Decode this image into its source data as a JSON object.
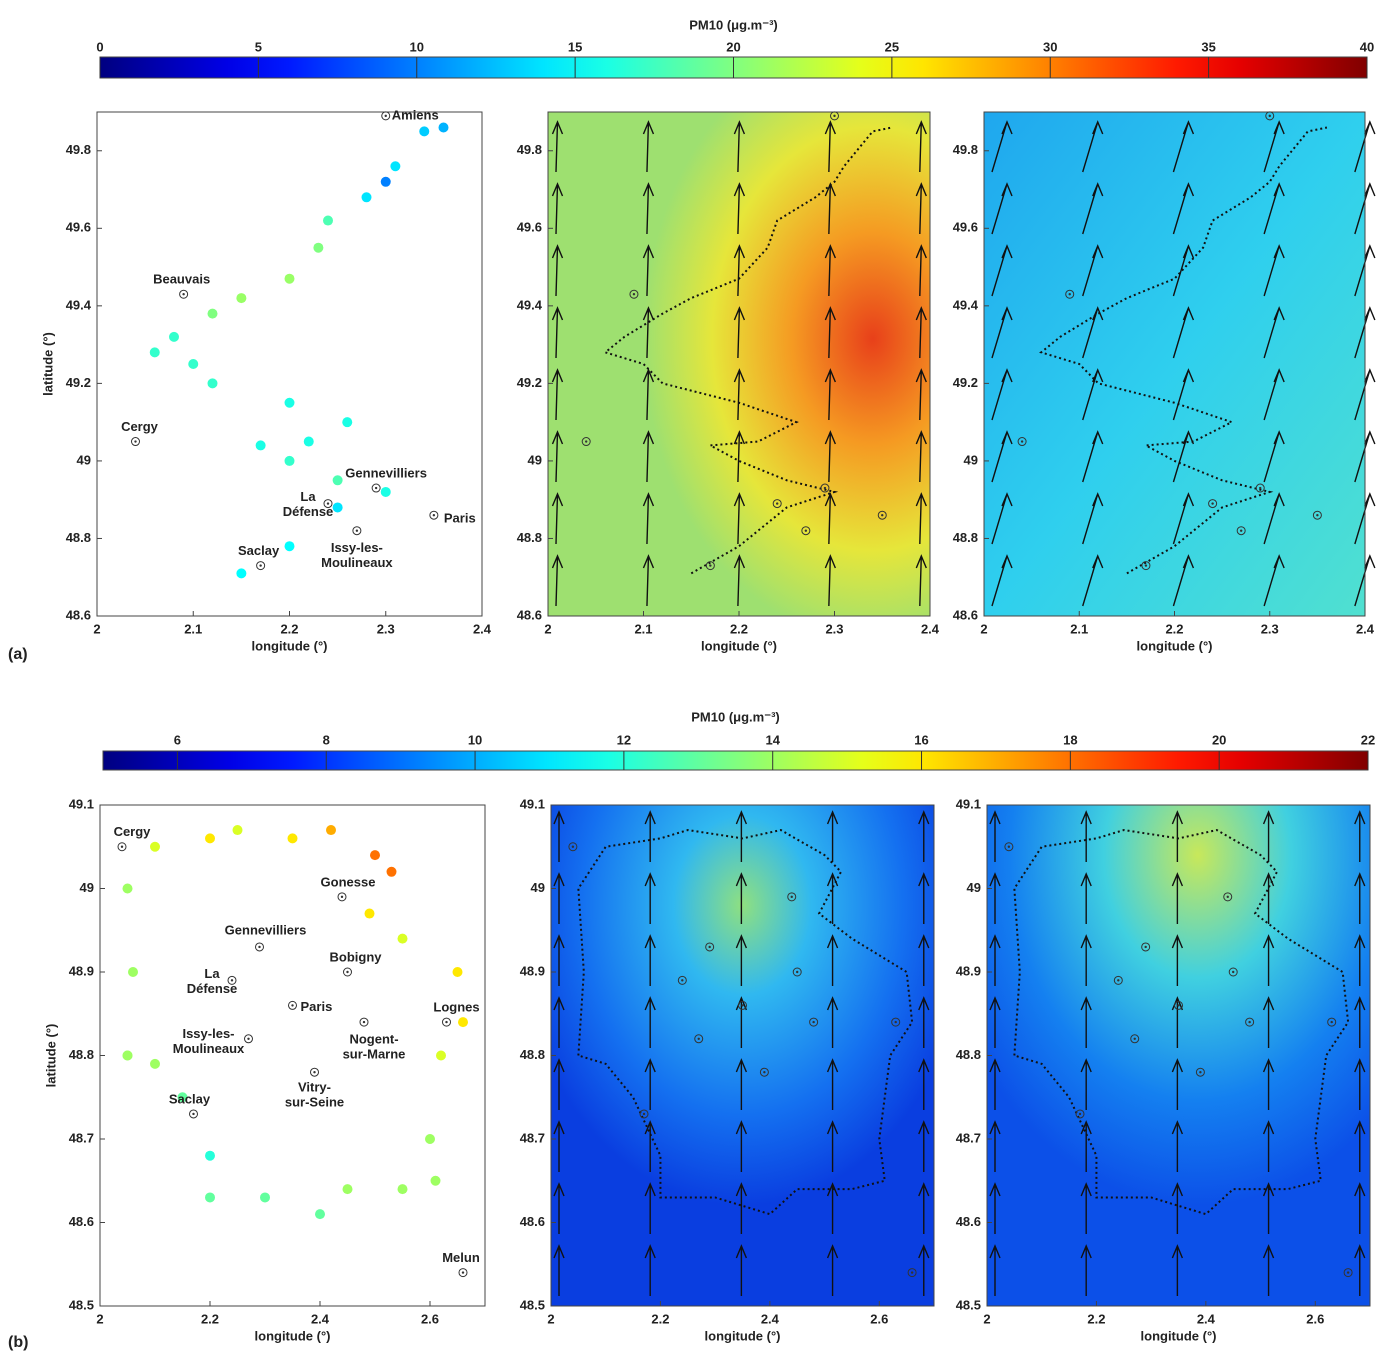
{
  "labels": {
    "a": "(a)",
    "b": "(b)"
  },
  "chart_data": [
    {
      "type": "map",
      "colorbar_title": "PM10 (μg.m⁻³)",
      "clim": [
        0,
        40
      ],
      "cticks": [
        0,
        5,
        10,
        15,
        20,
        25,
        30,
        35,
        40
      ],
      "xlabel": "longitude (°)",
      "ylabel": "latitude (°)",
      "xlim": [
        2,
        2.4
      ],
      "xticks": [
        2,
        2.1,
        2.2,
        2.3,
        2.4
      ],
      "ylim": [
        48.6,
        49.9
      ],
      "yticks": [
        48.6,
        48.8,
        49,
        49.2,
        49.4,
        49.6,
        49.8
      ],
      "track": {
        "x": [
          2.15,
          2.2,
          2.25,
          2.3,
          2.25,
          2.2,
          2.17,
          2.22,
          2.26,
          2.2,
          2.12,
          2.1,
          2.06,
          2.08,
          2.12,
          2.15,
          2.2,
          2.23,
          2.24,
          2.28,
          2.3,
          2.31,
          2.34,
          2.36
        ],
        "y": [
          48.71,
          48.78,
          48.88,
          48.92,
          48.95,
          49.0,
          49.04,
          49.05,
          49.1,
          49.15,
          49.2,
          49.25,
          49.28,
          49.32,
          49.38,
          49.42,
          49.47,
          49.55,
          49.62,
          49.68,
          49.72,
          49.76,
          49.85,
          49.86
        ],
        "values": [
          15,
          15,
          14,
          16,
          18,
          17,
          16,
          16,
          16,
          16,
          17,
          17,
          17,
          17,
          20,
          21,
          21,
          20,
          18,
          14,
          10,
          14,
          13,
          12
        ]
      },
      "stations": [
        {
          "name": [
            "Amiens"
          ],
          "lon": 2.3,
          "lat": 49.89
        },
        {
          "name": [
            "Beauvais"
          ],
          "lon": 2.09,
          "lat": 49.43
        },
        {
          "name": [
            "Cergy"
          ],
          "lon": 2.04,
          "lat": 49.05
        },
        {
          "name": [
            "Gennevilliers"
          ],
          "lon": 2.29,
          "lat": 48.93
        },
        {
          "name": [
            "La",
            "Défense"
          ],
          "lon": 2.24,
          "lat": 48.89
        },
        {
          "name": [
            "Paris"
          ],
          "lon": 2.35,
          "lat": 48.86
        },
        {
          "name": [
            "Issy-les-",
            "Moulineaux"
          ],
          "lon": 2.27,
          "lat": 48.82
        },
        {
          "name": [
            "Saclay"
          ],
          "lon": 2.17,
          "lat": 48.73
        }
      ]
    },
    {
      "type": "map",
      "colorbar_title": "PM10 (μg.m⁻³)",
      "clim": [
        5,
        22
      ],
      "cticks": [
        6,
        8,
        10,
        12,
        14,
        16,
        18,
        20,
        22
      ],
      "xlabel": "longitude (°)",
      "ylabel": "latitude (°)",
      "xlim": [
        2,
        2.7
      ],
      "xticks": [
        2,
        2.2,
        2.4,
        2.6
      ],
      "ylim": [
        48.5,
        49.1
      ],
      "yticks": [
        48.5,
        48.6,
        48.7,
        48.8,
        48.9,
        49,
        49.1
      ],
      "track": {
        "x": [
          2.05,
          2.06,
          2.05,
          2.1,
          2.2,
          2.25,
          2.35,
          2.42,
          2.5,
          2.53,
          2.49,
          2.55,
          2.65,
          2.66,
          2.62,
          2.6,
          2.61,
          2.55,
          2.45,
          2.4,
          2.3,
          2.2,
          2.2,
          2.15,
          2.1,
          2.05
        ],
        "y": [
          48.8,
          48.9,
          49.0,
          49.05,
          49.06,
          49.07,
          49.06,
          49.07,
          49.04,
          49.02,
          48.97,
          48.94,
          48.9,
          48.84,
          48.8,
          48.7,
          48.65,
          48.64,
          48.64,
          48.61,
          48.63,
          48.63,
          48.68,
          48.75,
          48.79,
          48.8
        ],
        "values": [
          14,
          14,
          14,
          15,
          16,
          15,
          16,
          17,
          18,
          18,
          16,
          15,
          16,
          16,
          15,
          14,
          14,
          14,
          14,
          13,
          13,
          13,
          12,
          13,
          14,
          14
        ]
      },
      "stations": [
        {
          "name": [
            "Cergy"
          ],
          "lon": 2.04,
          "lat": 49.05
        },
        {
          "name": [
            "Gonesse"
          ],
          "lon": 2.44,
          "lat": 48.99
        },
        {
          "name": [
            "Gennevilliers"
          ],
          "lon": 2.29,
          "lat": 48.93
        },
        {
          "name": [
            "Bobigny"
          ],
          "lon": 2.45,
          "lat": 48.9
        },
        {
          "name": [
            "La",
            "Défense"
          ],
          "lon": 2.24,
          "lat": 48.89
        },
        {
          "name": [
            "Paris"
          ],
          "lon": 2.35,
          "lat": 48.86
        },
        {
          "name": [
            "Lognes"
          ],
          "lon": 2.63,
          "lat": 48.84
        },
        {
          "name": [
            "Issy-les-",
            "Moulineaux"
          ],
          "lon": 2.27,
          "lat": 48.82
        },
        {
          "name": [
            "Nogent-",
            "sur-Marne"
          ],
          "lon": 2.48,
          "lat": 48.84
        },
        {
          "name": [
            "Vitry-",
            "sur-Seine"
          ],
          "lon": 2.39,
          "lat": 48.78
        },
        {
          "name": [
            "Saclay"
          ],
          "lon": 2.17,
          "lat": 48.73
        },
        {
          "name": [
            "Melun"
          ],
          "lon": 2.66,
          "lat": 48.54
        }
      ]
    }
  ]
}
